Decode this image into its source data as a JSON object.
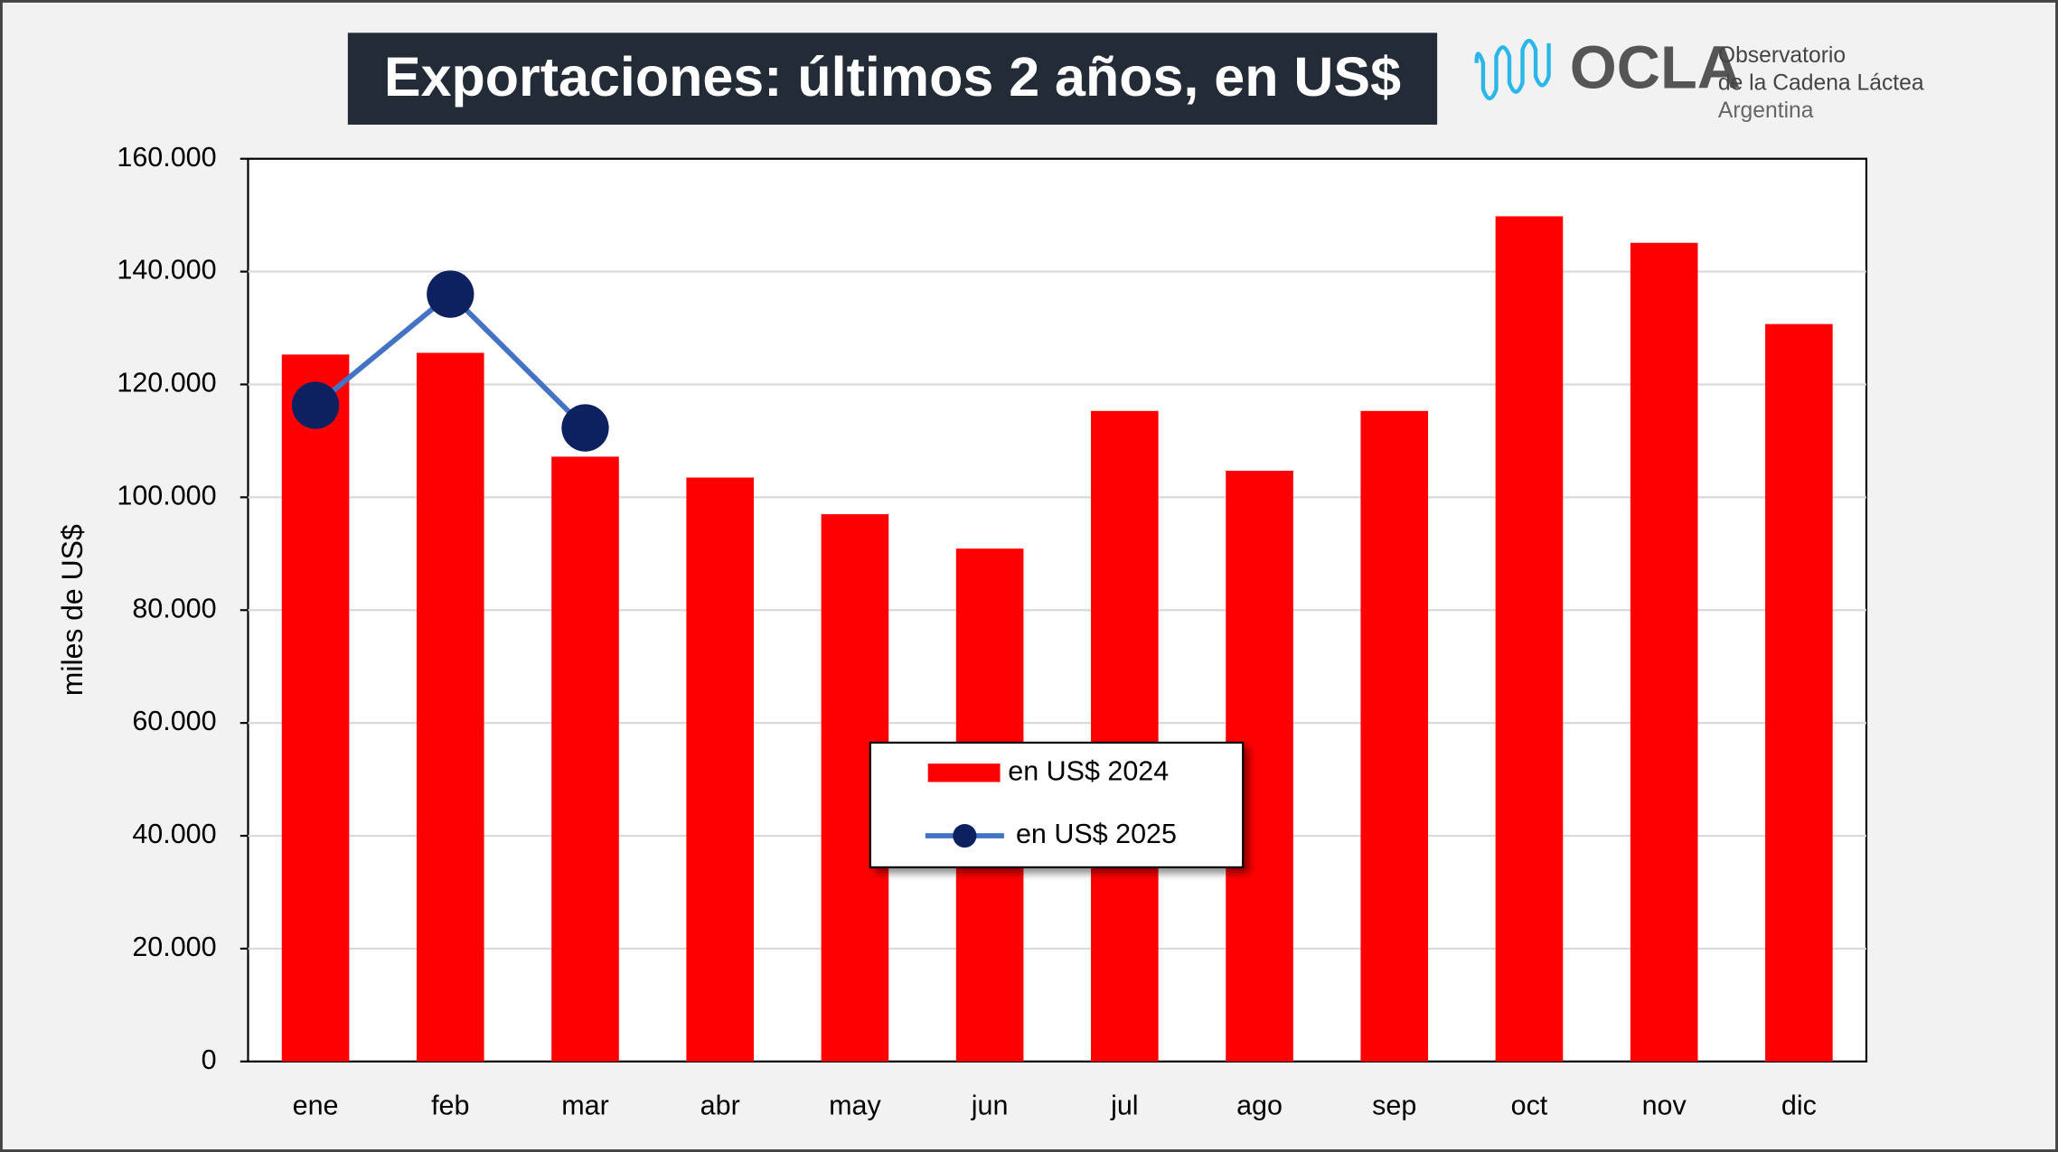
{
  "chart_data": {
    "type": "bar",
    "title": "Exportaciones: últimos 2 años, en US$",
    "y_label": "miles de US$",
    "logo": {
      "name": "OCLA",
      "line1": "Observatorio",
      "line2": "de la Cadena Láctea",
      "line3": "Argentina"
    },
    "categories": [
      "ene",
      "feb",
      "mar",
      "abr",
      "may",
      "jun",
      "jul",
      "ago",
      "sep",
      "oct",
      "nov",
      "dic"
    ],
    "series": [
      {
        "name": "en US$ 2024",
        "type": "bar",
        "color": "#ff0000",
        "values": [
          125300,
          125600,
          107200,
          103500,
          97000,
          90900,
          115300,
          104700,
          115300,
          149800,
          145100,
          130700
        ]
      },
      {
        "name": "en US$ 2025",
        "type": "line",
        "color": "#4472c4",
        "marker_color": "#0d2060",
        "values": [
          116300,
          136000,
          112300,
          null,
          null,
          null,
          null,
          null,
          null,
          null,
          null,
          null
        ]
      }
    ],
    "ylim": [
      0,
      160000
    ],
    "yticks": [
      0,
      {
        "value": 20000,
        "label": "20.000"
      },
      {
        "value": 40000,
        "label": "40.000"
      },
      {
        "value": 60000,
        "label": "60.000"
      },
      {
        "value": 80000,
        "label": "80.000"
      },
      {
        "value": 100000,
        "label": "100.000"
      },
      {
        "value": 120000,
        "label": "120.000"
      },
      {
        "value": 140000,
        "label": "140.000"
      },
      {
        "value": 160000,
        "label": "160.000"
      }
    ],
    "grid": true
  }
}
